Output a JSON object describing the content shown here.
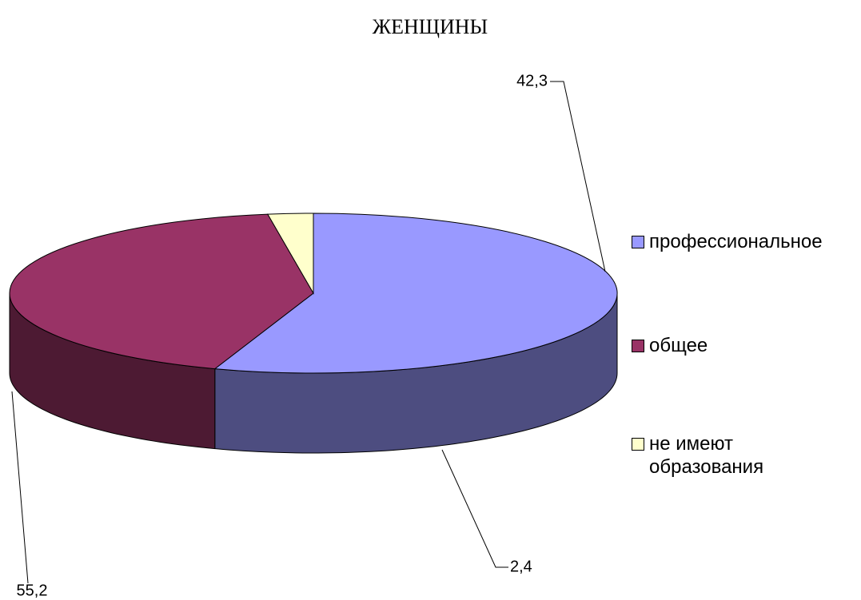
{
  "chart_data": {
    "type": "pie",
    "title": "ЖЕНЩИНЫ",
    "categories": [
      "профессиональное",
      "общее",
      "не имеют образования"
    ],
    "values": [
      55.2,
      42.3,
      2.4
    ],
    "value_labels": [
      "55,2",
      "42,3",
      "2,4"
    ],
    "colors": [
      "#9999ff",
      "#993366",
      "#ffffcc"
    ],
    "legend": "right"
  }
}
